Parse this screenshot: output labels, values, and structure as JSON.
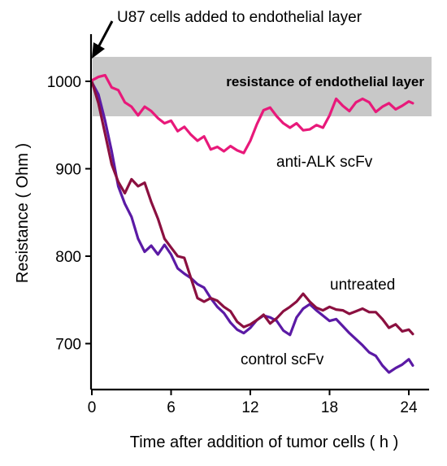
{
  "chart_data": {
    "type": "line",
    "title": "",
    "xlabel": "Time after addition of tumor cells ( h )",
    "ylabel": "Resistance ( Ohm )",
    "xlim": [
      0,
      25
    ],
    "ylim": [
      633,
      1070
    ],
    "xticks": [
      0,
      6,
      12,
      18,
      24
    ],
    "yticks": [
      700,
      800,
      900,
      1000
    ],
    "grid": false,
    "annotation": {
      "text": "U87 cells added to endothelial layer",
      "x": 0,
      "arrow": true
    },
    "band": {
      "label": "resistance of endothelial layer",
      "y_from": 960,
      "y_to": 1028,
      "color": "#c8c8c8"
    },
    "series": [
      {
        "name": "anti-ALK scFv",
        "color": "#e8197a",
        "x": [
          0,
          0.5,
          1,
          1.5,
          2,
          2.5,
          3,
          3.5,
          4,
          4.5,
          5,
          5.5,
          6,
          6.5,
          7,
          7.5,
          8,
          8.5,
          9,
          9.5,
          10,
          10.5,
          11,
          11.5,
          12,
          12.5,
          13,
          13.5,
          14,
          14.5,
          15,
          15.5,
          16,
          16.5,
          17,
          17.5,
          18,
          18.5,
          19,
          19.5,
          20,
          20.5,
          21,
          21.5,
          22,
          22.5,
          23,
          23.5,
          24,
          24.3
        ],
        "values": [
          1001,
          1005,
          1007,
          993,
          990,
          976,
          971,
          961,
          971,
          966,
          958,
          952,
          955,
          943,
          948,
          939,
          932,
          937,
          922,
          925,
          920,
          926,
          921,
          918,
          932,
          951,
          967,
          970,
          960,
          952,
          947,
          952,
          944,
          945,
          950,
          947,
          961,
          980,
          972,
          966,
          976,
          980,
          976,
          965,
          971,
          975,
          968,
          972,
          977,
          975
        ]
      },
      {
        "name": "untreated",
        "color": "#8b1040",
        "x": [
          0,
          0.5,
          1,
          1.5,
          2,
          2.5,
          3,
          3.5,
          4,
          4.5,
          5,
          5.5,
          6,
          6.5,
          7,
          7.5,
          8,
          8.5,
          9,
          9.5,
          10,
          10.5,
          11,
          11.5,
          12,
          12.5,
          13,
          13.5,
          14,
          14.5,
          15,
          15.5,
          16,
          16.5,
          17,
          17.5,
          18,
          18.5,
          19,
          19.5,
          20,
          20.5,
          21,
          21.5,
          22,
          22.5,
          23,
          23.5,
          24,
          24.3
        ],
        "values": [
          1000,
          975,
          940,
          905,
          885,
          872,
          888,
          880,
          884,
          862,
          843,
          820,
          810,
          800,
          798,
          775,
          752,
          748,
          752,
          749,
          742,
          737,
          725,
          719,
          722,
          727,
          733,
          723,
          729,
          737,
          742,
          748,
          757,
          748,
          741,
          738,
          742,
          739,
          738,
          734,
          737,
          740,
          736,
          736,
          728,
          718,
          722,
          714,
          716,
          711
        ]
      },
      {
        "name": "control scFv",
        "color": "#5b1aa5",
        "x": [
          0,
          0.5,
          1,
          1.5,
          2,
          2.5,
          3,
          3.5,
          4,
          4.5,
          5,
          5.5,
          6,
          6.5,
          7,
          7.5,
          8,
          8.5,
          9,
          9.5,
          10,
          10.5,
          11,
          11.5,
          12,
          12.5,
          13,
          13.5,
          14,
          14.5,
          15,
          15.5,
          16,
          16.5,
          17,
          17.5,
          18,
          18.5,
          19,
          19.5,
          20,
          20.5,
          21,
          21.5,
          22,
          22.5,
          23,
          23.5,
          24,
          24.3
        ],
        "values": [
          999,
          985,
          955,
          920,
          880,
          860,
          845,
          820,
          805,
          812,
          802,
          813,
          802,
          786,
          780,
          775,
          768,
          764,
          752,
          742,
          735,
          724,
          716,
          712,
          718,
          727,
          732,
          730,
          726,
          715,
          710,
          730,
          740,
          745,
          738,
          732,
          726,
          728,
          720,
          712,
          705,
          698,
          690,
          686,
          675,
          667,
          672,
          676,
          682,
          675
        ]
      }
    ]
  }
}
